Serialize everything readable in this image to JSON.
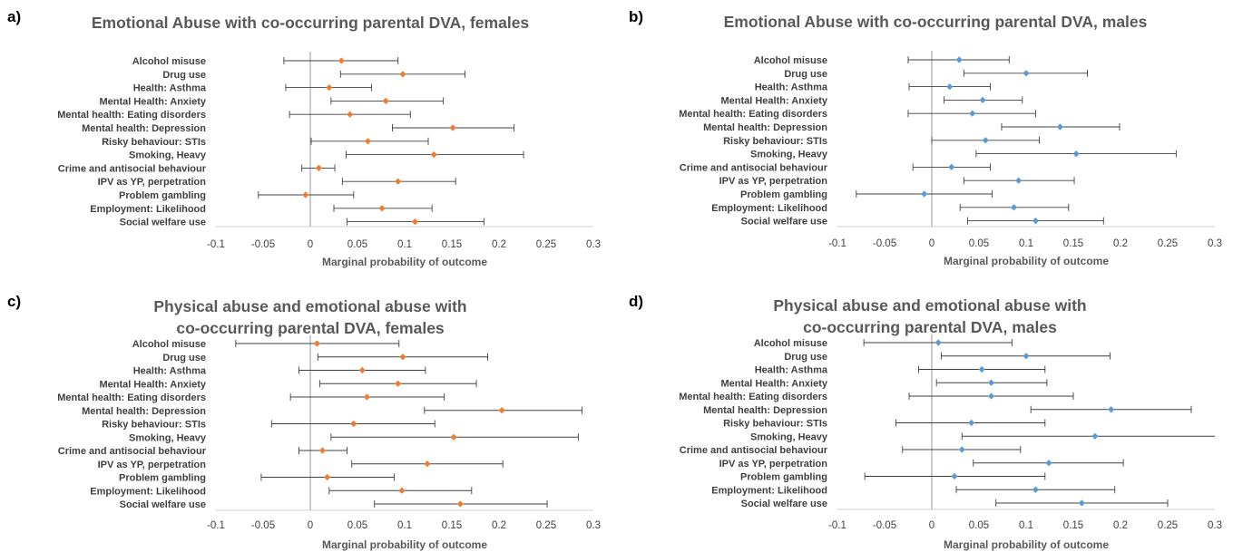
{
  "chart_data": [
    {
      "panel_label": "a)",
      "type": "scatter",
      "title": "Emotional Abuse with co-occurring parental DVA, females",
      "xlabel": "Marginal probability of outcome",
      "ylabel": "",
      "xlim": [
        -0.1,
        0.3
      ],
      "xticks": [
        "-0.1",
        "-0.05",
        "0",
        "0.05",
        "0.1",
        "0.15",
        "0.2",
        "0.25",
        "0.3"
      ],
      "marker_color": "#ED7D31",
      "grid": false,
      "categories": [
        "Alcohol misuse",
        "Drug use",
        "Health: Asthma",
        "Mental Health: Anxiety",
        "Mental health: Eating disorders",
        "Mental health: Depression",
        "Risky behaviour: STIs",
        "Smoking, Heavy",
        "Crime and antisocial behaviour",
        "IPV as YP, perpetration",
        "Problem gambling",
        "Employment: Likelihood",
        "Social welfare use"
      ],
      "values": [
        0.033,
        0.098,
        0.02,
        0.08,
        0.042,
        0.151,
        0.061,
        0.131,
        0.009,
        0.093,
        -0.005,
        0.076,
        0.111
      ],
      "ci_low": [
        -0.028,
        0.032,
        -0.026,
        0.022,
        -0.022,
        0.087,
        0.001,
        0.038,
        -0.009,
        0.034,
        -0.055,
        0.025,
        0.039
      ],
      "ci_high": [
        0.093,
        0.164,
        0.065,
        0.141,
        0.106,
        0.216,
        0.125,
        0.226,
        0.026,
        0.154,
        0.046,
        0.129,
        0.184
      ]
    },
    {
      "panel_label": "b)",
      "type": "scatter",
      "title": "Emotional Abuse with co-occurring parental DVA, males",
      "xlabel": "Marginal probability of outcome",
      "ylabel": "",
      "xlim": [
        -0.1,
        0.3
      ],
      "xticks": [
        "-0.1",
        "-0.05",
        "0",
        "0.05",
        "0.1",
        "0.15",
        "0.2",
        "0.25",
        "0.3"
      ],
      "marker_color": "#5B9BD5",
      "grid": false,
      "categories": [
        "Alcohol misuse",
        "Drug use",
        "Health: Asthma",
        "Mental Health: Anxiety",
        "Mental health: Eating disorders",
        "Mental health: Depression",
        "Risky behaviour: STIs",
        "Smoking, Heavy",
        "Crime and antisocial behaviour",
        "IPV as YP, perpetration",
        "Problem gambling",
        "Employment: Likelihood",
        "Social welfare use"
      ],
      "values": [
        0.029,
        0.1,
        0.019,
        0.054,
        0.043,
        0.136,
        0.057,
        0.153,
        0.021,
        0.092,
        -0.008,
        0.087,
        0.11
      ],
      "ci_low": [
        -0.025,
        0.034,
        -0.024,
        0.013,
        -0.025,
        0.074,
        0.0,
        0.047,
        -0.02,
        0.034,
        -0.08,
        0.03,
        0.038
      ],
      "ci_high": [
        0.082,
        0.165,
        0.062,
        0.096,
        0.11,
        0.199,
        0.114,
        0.259,
        0.062,
        0.151,
        0.064,
        0.145,
        0.182
      ]
    },
    {
      "panel_label": "c)",
      "type": "scatter",
      "title": "Physical abuse and emotional abuse with co-occurring parental DVA, females",
      "title_lines": [
        "Physical abuse and emotional abuse with",
        "co-occurring parental DVA, females"
      ],
      "xlabel": "Marginal probability of outcome",
      "ylabel": "",
      "xlim": [
        -0.1,
        0.3
      ],
      "xticks": [
        "-0.1",
        "-0.05",
        "0",
        "0.05",
        "0.1",
        "0.15",
        "0.2",
        "0.25",
        "0.3"
      ],
      "marker_color": "#ED7D31",
      "grid": false,
      "categories": [
        "Alcohol misuse",
        "Drug use",
        "Health: Asthma",
        "Mental Health: Anxiety",
        "Mental health: Eating disorders",
        "Mental health: Depression",
        "Risky behaviour: STIs",
        "Smoking, Heavy",
        "Crime and antisocial behaviour",
        "IPV as YP, perpetration",
        "Problem gambling",
        "Employment: Likelihood",
        "Social welfare use"
      ],
      "values": [
        0.007,
        0.098,
        0.055,
        0.093,
        0.06,
        0.203,
        0.046,
        0.152,
        0.013,
        0.124,
        0.018,
        0.097,
        0.159
      ],
      "ci_low": [
        -0.079,
        0.008,
        -0.012,
        0.01,
        -0.021,
        0.121,
        -0.041,
        0.022,
        -0.012,
        0.044,
        -0.052,
        0.02,
        0.068
      ],
      "ci_high": [
        0.094,
        0.188,
        0.122,
        0.176,
        0.142,
        0.288,
        0.132,
        0.284,
        0.039,
        0.204,
        0.089,
        0.171,
        0.251
      ]
    },
    {
      "panel_label": "d)",
      "type": "scatter",
      "title": "Physical abuse and emotional abuse with co-occurring parental DVA, males",
      "title_lines": [
        "Physical abuse and emotional abuse with",
        "co-occurring parental DVA, males"
      ],
      "xlabel": "Marginal probability of outcome",
      "ylabel": "",
      "xlim": [
        -0.1,
        0.3
      ],
      "xticks": [
        "-0.1",
        "-0.05",
        "0",
        "0.05",
        "0.1",
        "0.15",
        "0.2",
        "0.25",
        "0.3"
      ],
      "marker_color": "#5B9BD5",
      "grid": false,
      "categories": [
        "Alcohol misuse",
        "Drug use",
        "Health: Asthma",
        "Mental Health: Anxiety",
        "Mental health: Eating disorders",
        "Mental health: Depression",
        "Risky behaviour: STIs",
        "Smoking, Heavy",
        "Crime and antisocial behaviour",
        "IPV as YP, perpetration",
        "Problem gambling",
        "Employment: Likelihood",
        "Social welfare use"
      ],
      "values": [
        0.007,
        0.1,
        0.053,
        0.063,
        0.063,
        0.19,
        0.042,
        0.173,
        0.032,
        0.124,
        0.024,
        0.11,
        0.159
      ],
      "ci_low": [
        -0.072,
        0.01,
        -0.014,
        0.005,
        -0.024,
        0.105,
        -0.038,
        0.032,
        -0.031,
        0.044,
        -0.071,
        0.026,
        0.068
      ],
      "ci_high": [
        0.085,
        0.189,
        0.12,
        0.122,
        0.15,
        0.275,
        0.12,
        0.3,
        0.094,
        0.203,
        0.12,
        0.194,
        0.25
      ]
    }
  ]
}
